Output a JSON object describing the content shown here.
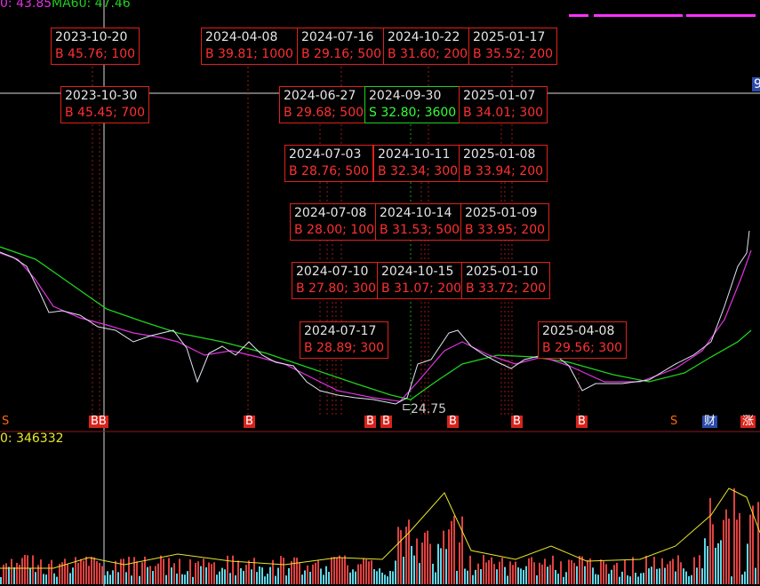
{
  "header": {
    "ma_short": "0: 43.85",
    "ma60": "MA60: 47.46",
    "volume": "0: 346332",
    "edge_price": "9"
  },
  "low_label": "24.75",
  "trades": [
    {
      "date": "2023-10-20",
      "detail": "B 45.76; 100"
    },
    {
      "date": "2024-04-08",
      "detail": "B 39.81; 1000"
    },
    {
      "date": "2024-07-16",
      "detail": "B 29.16; 500"
    },
    {
      "date": "2024-10-22",
      "detail": "B 31.60; 200"
    },
    {
      "date": "2025-01-17",
      "detail": "B 35.52; 200"
    },
    {
      "date": "2023-10-30",
      "detail": "B 45.45; 700"
    },
    {
      "date": "2024-06-27",
      "detail": "B 29.68; 500"
    },
    {
      "date": "2024-09-30",
      "detail": "S 32.80; 3600"
    },
    {
      "date": "2025-01-07",
      "detail": "B 34.01; 300"
    },
    {
      "date": "2024-07-03",
      "detail": "B 28.76; 500"
    },
    {
      "date": "2024-10-11",
      "detail": "B 32.34; 300"
    },
    {
      "date": "2025-01-08",
      "detail": "B 33.94; 200"
    },
    {
      "date": "2024-07-08",
      "detail": "B 28.00; 100"
    },
    {
      "date": "2024-10-14",
      "detail": "B 31.53; 500"
    },
    {
      "date": "2025-01-09",
      "detail": "B 33.95; 200"
    },
    {
      "date": "2024-07-10",
      "detail": "B 27.80; 300"
    },
    {
      "date": "2024-10-15",
      "detail": "B 31.07; 200"
    },
    {
      "date": "2025-01-10",
      "detail": "B 33.72; 200"
    },
    {
      "date": "2024-07-17",
      "detail": "B 28.89; 300"
    },
    {
      "date": "2025-04-08",
      "detail": "B 29.56; 300"
    }
  ],
  "markers": [
    "S",
    "BB",
    "B",
    "B",
    "B",
    "B",
    "B",
    "B",
    "S",
    "财",
    "涨"
  ]
}
